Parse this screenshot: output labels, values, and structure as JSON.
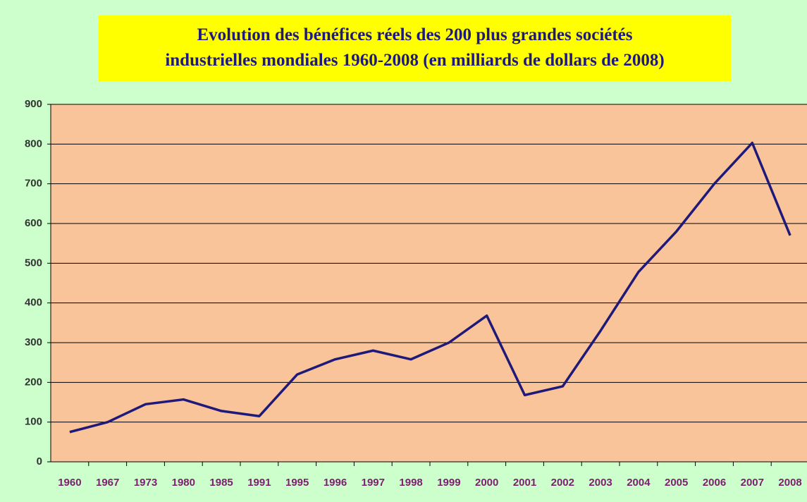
{
  "chart_data": {
    "type": "line",
    "title": "Evolution des bénéfices réels des 200 plus grandes sociétés\nindustrielles mondiales 1960-2008 (en milliards de dollars de 2008)",
    "categories": [
      "1960",
      "1967",
      "1973",
      "1980",
      "1985",
      "1991",
      "1995",
      "1996",
      "1997",
      "1998",
      "1999",
      "2000",
      "2001",
      "2002",
      "2003",
      "2004",
      "2005",
      "2006",
      "2007",
      "2008"
    ],
    "series": [
      {
        "color": "#1f1a7a",
        "values": [
          75,
          100,
          145,
          157,
          128,
          115,
          220,
          258,
          280,
          258,
          300,
          368,
          168,
          190,
          330,
          478,
          580,
          700,
          803,
          570
        ]
      }
    ],
    "ylim": [
      0,
      900
    ],
    "yticks": [
      0,
      100,
      200,
      300,
      400,
      500,
      600,
      700,
      800,
      900
    ],
    "grid": true
  }
}
